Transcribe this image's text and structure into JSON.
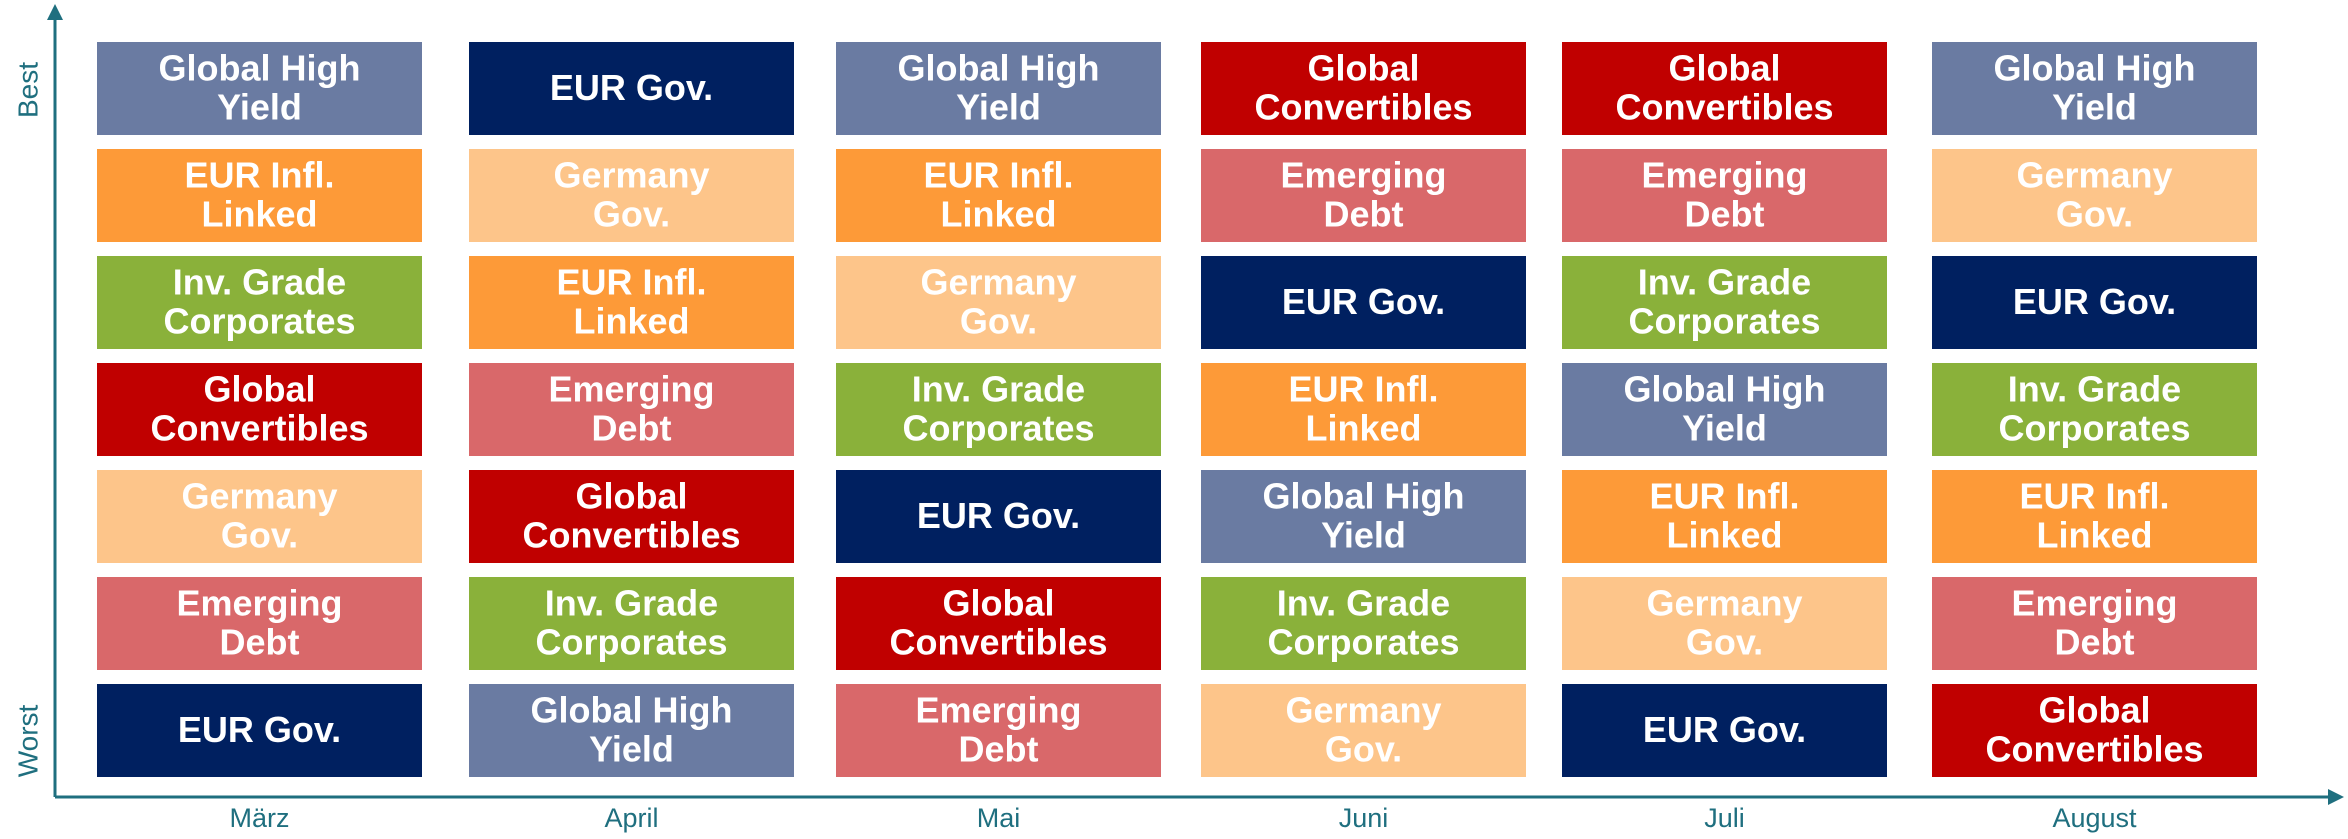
{
  "chart_data": {
    "type": "ranking",
    "y_top_label": "Best",
    "y_bottom_label": "Worst",
    "axis_color": "#1f6f7f",
    "columns": [
      {
        "name": "März",
        "items": [
          {
            "label": [
              "Global High",
              "Yield"
            ],
            "color": "#6a7ba2"
          },
          {
            "label": [
              "EUR Infl.",
              "Linked"
            ],
            "color": "#fd9a38"
          },
          {
            "label": [
              "Inv. Grade",
              "Corporates"
            ],
            "color": "#8ab13a"
          },
          {
            "label": [
              "Global",
              "Convertibles"
            ],
            "color": "#c00000"
          },
          {
            "label": [
              "Germany",
              "Gov."
            ],
            "color": "#fdc58a"
          },
          {
            "label": [
              "Emerging",
              "Debt"
            ],
            "color": "#d9686a"
          },
          {
            "label": [
              "EUR Gov."
            ],
            "color": "#002060"
          }
        ]
      },
      {
        "name": "April",
        "items": [
          {
            "label": [
              "EUR Gov."
            ],
            "color": "#002060"
          },
          {
            "label": [
              "Germany",
              "Gov."
            ],
            "color": "#fdc58a"
          },
          {
            "label": [
              "EUR Infl.",
              "Linked"
            ],
            "color": "#fd9a38"
          },
          {
            "label": [
              "Emerging",
              "Debt"
            ],
            "color": "#d9686a"
          },
          {
            "label": [
              "Global",
              "Convertibles"
            ],
            "color": "#c00000"
          },
          {
            "label": [
              "Inv. Grade",
              "Corporates"
            ],
            "color": "#8ab13a"
          },
          {
            "label": [
              "Global High",
              "Yield"
            ],
            "color": "#6a7ba2"
          }
        ]
      },
      {
        "name": "Mai",
        "items": [
          {
            "label": [
              "Global High",
              "Yield"
            ],
            "color": "#6a7ba2"
          },
          {
            "label": [
              "EUR Infl.",
              "Linked"
            ],
            "color": "#fd9a38"
          },
          {
            "label": [
              "Germany",
              "Gov."
            ],
            "color": "#fdc58a"
          },
          {
            "label": [
              "Inv. Grade",
              "Corporates"
            ],
            "color": "#8ab13a"
          },
          {
            "label": [
              "EUR Gov."
            ],
            "color": "#002060"
          },
          {
            "label": [
              "Global",
              "Convertibles"
            ],
            "color": "#c00000"
          },
          {
            "label": [
              "Emerging",
              "Debt"
            ],
            "color": "#d9686a"
          }
        ]
      },
      {
        "name": "Juni",
        "items": [
          {
            "label": [
              "Global",
              "Convertibles"
            ],
            "color": "#c00000"
          },
          {
            "label": [
              "Emerging",
              "Debt"
            ],
            "color": "#d9686a"
          },
          {
            "label": [
              "EUR Gov."
            ],
            "color": "#002060"
          },
          {
            "label": [
              "EUR Infl.",
              "Linked"
            ],
            "color": "#fd9a38"
          },
          {
            "label": [
              "Global High",
              "Yield"
            ],
            "color": "#6a7ba2"
          },
          {
            "label": [
              "Inv. Grade",
              "Corporates"
            ],
            "color": "#8ab13a"
          },
          {
            "label": [
              "Germany",
              "Gov."
            ],
            "color": "#fdc58a"
          }
        ]
      },
      {
        "name": "Juli",
        "items": [
          {
            "label": [
              "Global",
              "Convertibles"
            ],
            "color": "#c00000"
          },
          {
            "label": [
              "Emerging",
              "Debt"
            ],
            "color": "#d9686a"
          },
          {
            "label": [
              "Inv. Grade",
              "Corporates"
            ],
            "color": "#8ab13a"
          },
          {
            "label": [
              "Global High",
              "Yield"
            ],
            "color": "#6a7ba2"
          },
          {
            "label": [
              "EUR Infl.",
              "Linked"
            ],
            "color": "#fd9a38"
          },
          {
            "label": [
              "Germany",
              "Gov."
            ],
            "color": "#fdc58a"
          },
          {
            "label": [
              "EUR Gov."
            ],
            "color": "#002060"
          }
        ]
      },
      {
        "name": "August",
        "items": [
          {
            "label": [
              "Global High",
              "Yield"
            ],
            "color": "#6a7ba2"
          },
          {
            "label": [
              "Germany",
              "Gov."
            ],
            "color": "#fdc58a"
          },
          {
            "label": [
              "EUR Gov."
            ],
            "color": "#002060"
          },
          {
            "label": [
              "Inv. Grade",
              "Corporates"
            ],
            "color": "#8ab13a"
          },
          {
            "label": [
              "EUR Infl.",
              "Linked"
            ],
            "color": "#fd9a38"
          },
          {
            "label": [
              "Emerging",
              "Debt"
            ],
            "color": "#d9686a"
          },
          {
            "label": [
              "Global",
              "Convertibles"
            ],
            "color": "#c00000"
          }
        ]
      }
    ]
  }
}
